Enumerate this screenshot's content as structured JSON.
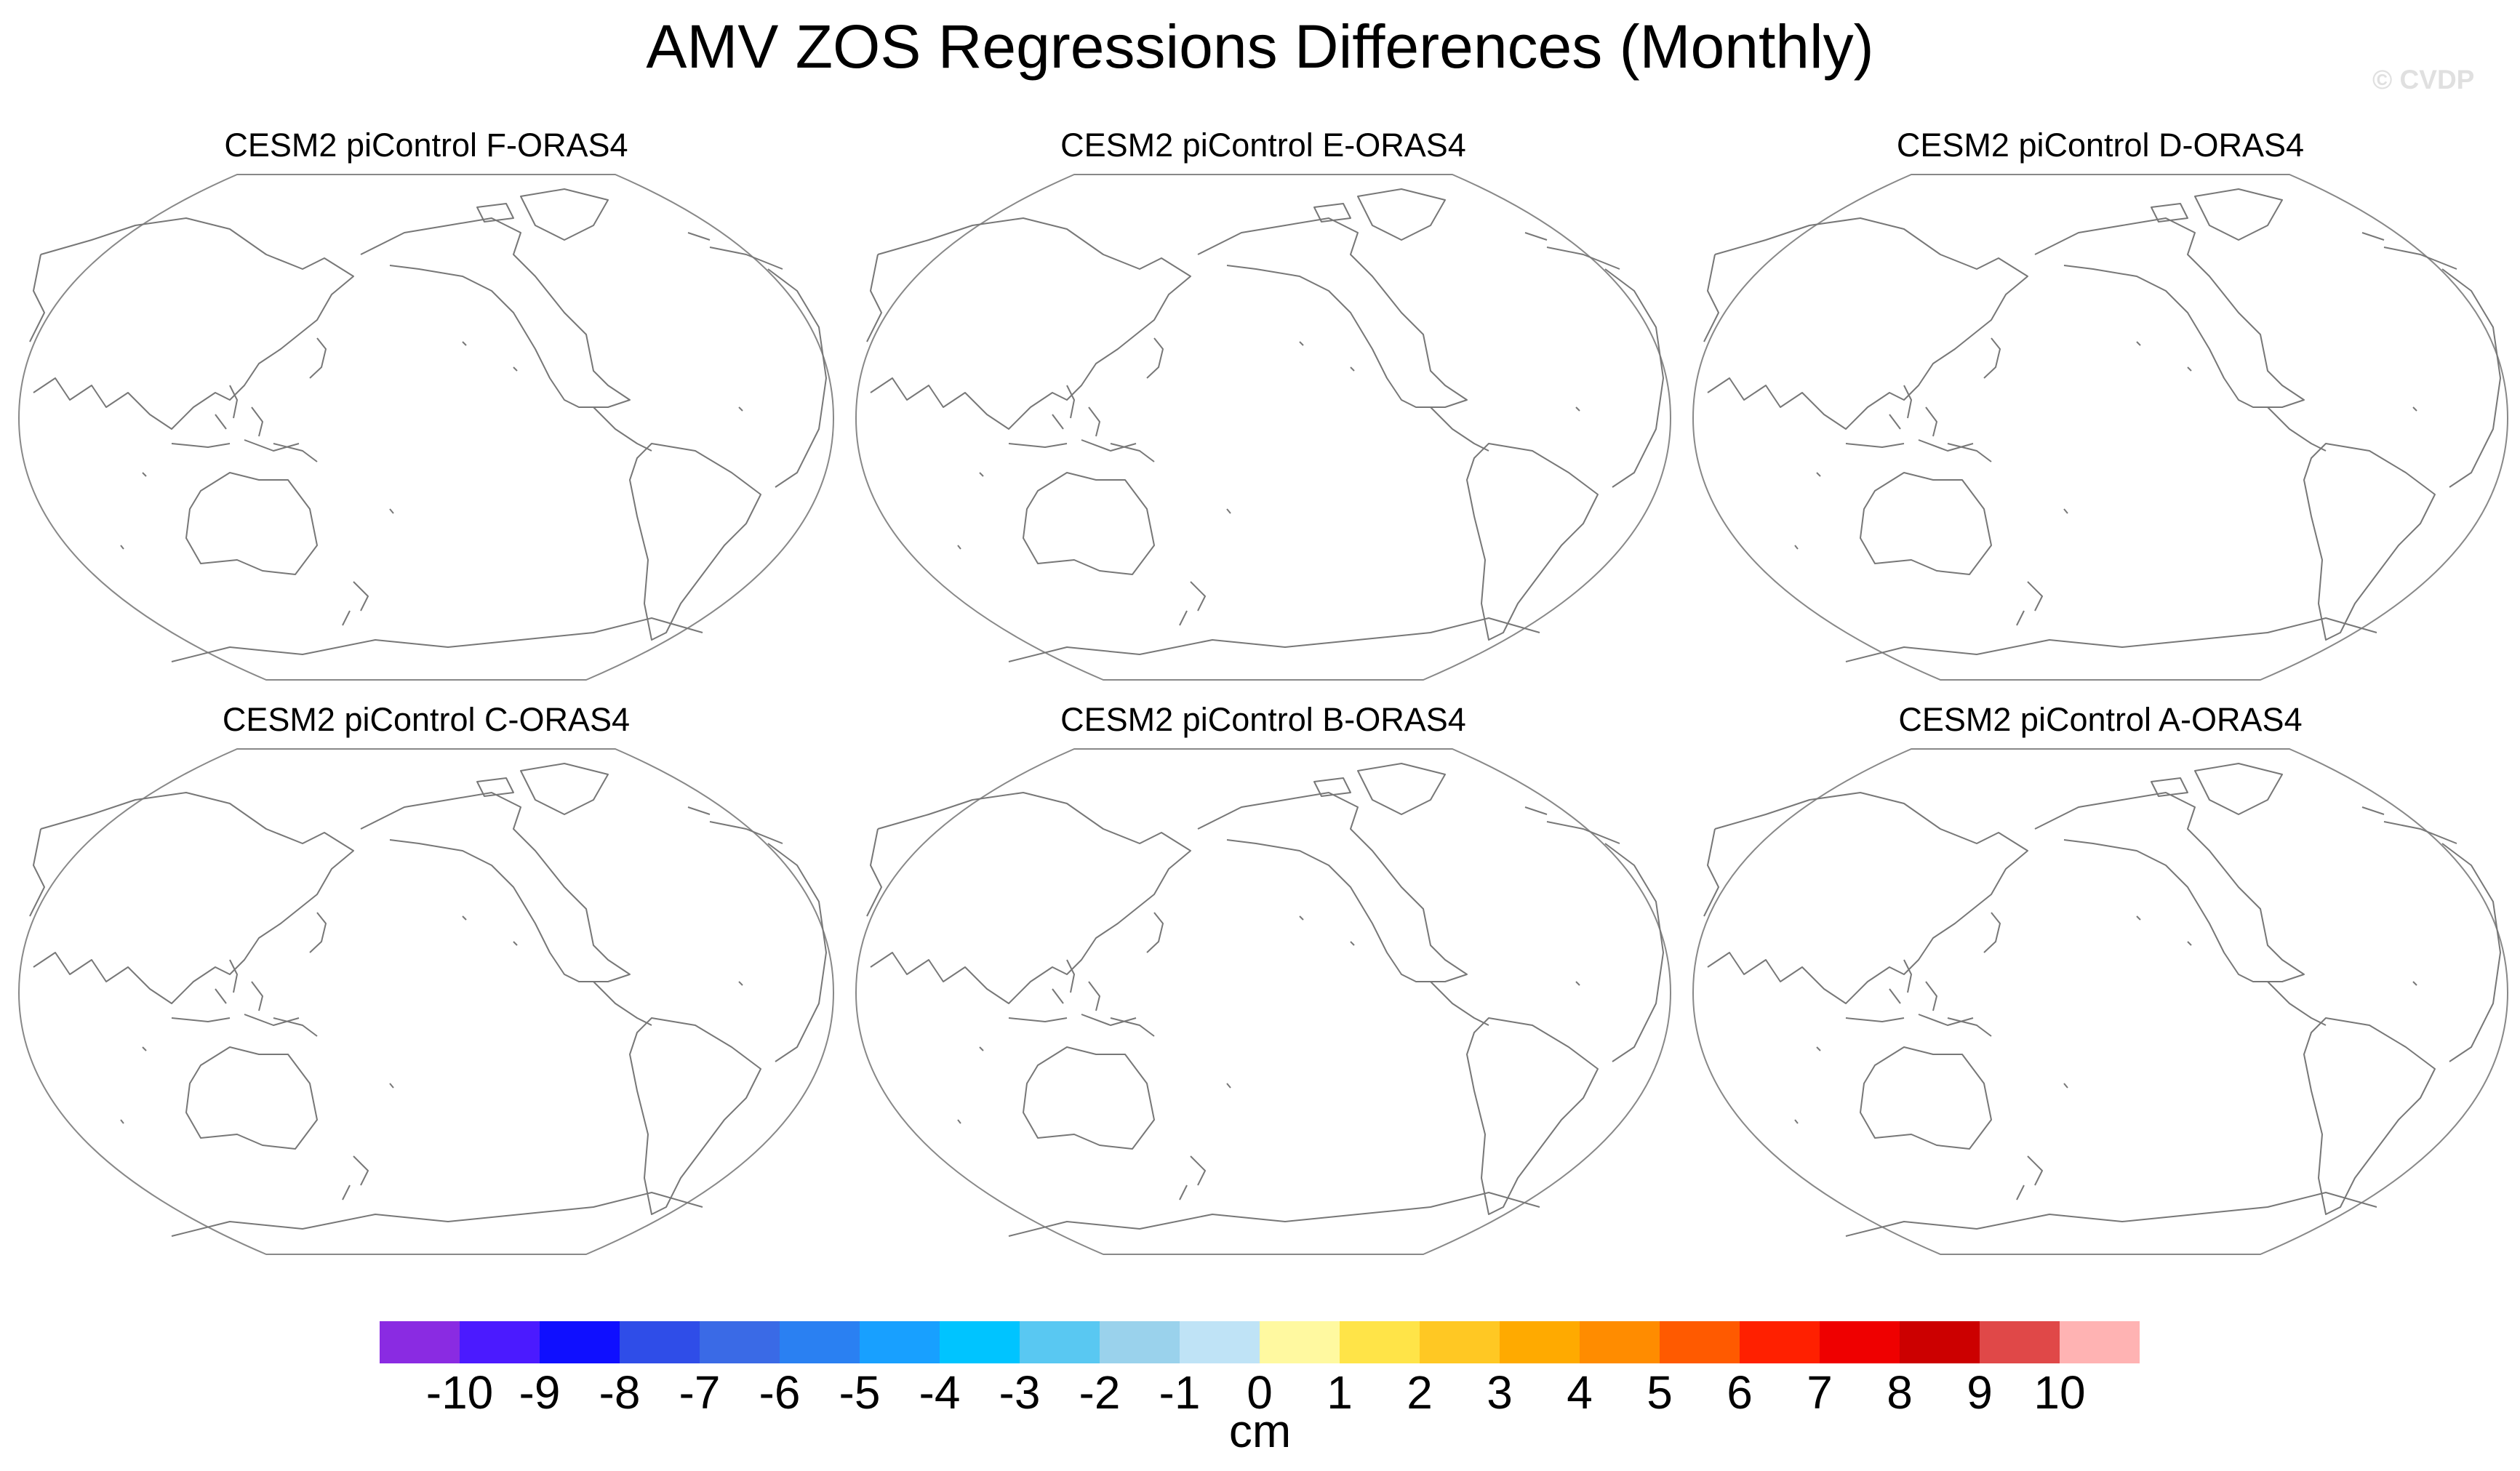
{
  "title": "AMV ZOS Regressions Differences (Monthly)",
  "credit": "© CVDP",
  "panels": [
    {
      "label": "CESM2 piControl F-ORAS4"
    },
    {
      "label": "CESM2 piControl E-ORAS4"
    },
    {
      "label": "CESM2 piControl D-ORAS4"
    },
    {
      "label": "CESM2 piControl C-ORAS4"
    },
    {
      "label": "CESM2 piControl B-ORAS4"
    },
    {
      "label": "CESM2 piControl A-ORAS4"
    }
  ],
  "colorbar": {
    "unit": "cm",
    "tick_labels": [
      "-10",
      "-9",
      "-8",
      "-7",
      "-6",
      "-5",
      "-4",
      "-3",
      "-2",
      "-1",
      "0",
      "1",
      "2",
      "3",
      "4",
      "5",
      "6",
      "7",
      "8",
      "9",
      "10"
    ],
    "colors": [
      "#8a2be2",
      "#4b1aff",
      "#0f0fff",
      "#2f4de8",
      "#3a6ae6",
      "#2a80f2",
      "#18a0ff",
      "#00c4ff",
      "#59c8f2",
      "#9ad2ec",
      "#bfe3f6",
      "#fff9a0",
      "#ffe448",
      "#ffc823",
      "#ffaa00",
      "#ff8c00",
      "#ff5a00",
      "#ff2000",
      "#ef0000",
      "#cc0000",
      "#e04848",
      "#ffb3b3"
    ]
  },
  "coastline_color": "#777777"
}
